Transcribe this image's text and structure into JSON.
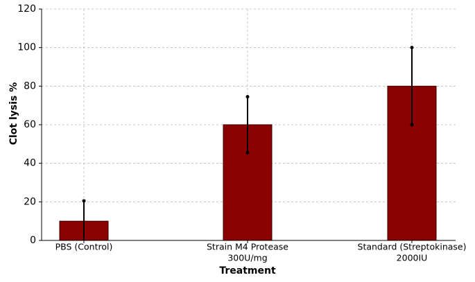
{
  "chart_data": {
    "type": "bar",
    "x_label": "Treatment",
    "y_label": "Clot lysis %",
    "categories": [
      [
        "PBS (Control)"
      ],
      [
        "Strain M4 Protease",
        "300U/mg"
      ],
      [
        "Standard (Streptokinase)",
        "2000IU"
      ]
    ],
    "values": [
      10,
      60,
      80
    ],
    "errors": [
      10.5,
      14.5,
      20
    ],
    "color": "#8b0000",
    "edge_color": "#3a0000",
    "ylim": [
      0,
      120
    ],
    "yticks": [
      0,
      20,
      40,
      60,
      80,
      100,
      120
    ],
    "grid": true
  }
}
